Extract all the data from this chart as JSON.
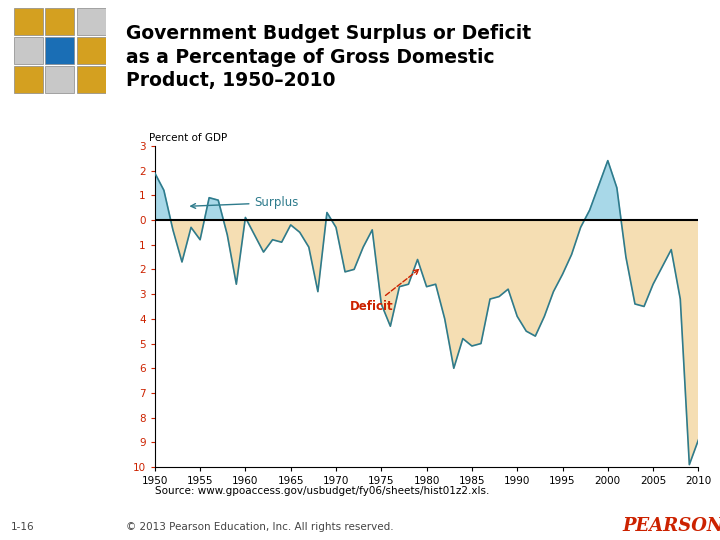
{
  "title_line1": "Government Budget Surplus or Deficit",
  "title_line2": "as a Percentage of Gross Domestic",
  "title_line3": "Product, 1950–2010",
  "ylabel": "Percent of GDP",
  "source": "Source: www.gpoaccess.gov/usbudget/fy06/sheets/hist01z2.xls.",
  "footer": "1-16",
  "copyright": "© 2013 Pearson Education, Inc. All rights reserved.",
  "years": [
    1950,
    1951,
    1952,
    1953,
    1954,
    1955,
    1956,
    1957,
    1958,
    1959,
    1960,
    1961,
    1962,
    1963,
    1964,
    1965,
    1966,
    1967,
    1968,
    1969,
    1970,
    1971,
    1972,
    1973,
    1974,
    1975,
    1976,
    1977,
    1978,
    1979,
    1980,
    1981,
    1982,
    1983,
    1984,
    1985,
    1986,
    1987,
    1988,
    1989,
    1990,
    1991,
    1992,
    1993,
    1994,
    1995,
    1996,
    1997,
    1998,
    1999,
    2000,
    2001,
    2002,
    2003,
    2004,
    2005,
    2006,
    2007,
    2008,
    2009,
    2010
  ],
  "values": [
    1.9,
    1.2,
    -0.4,
    -1.7,
    -0.3,
    -0.8,
    0.9,
    0.8,
    -0.6,
    -2.6,
    0.1,
    -0.6,
    -1.3,
    -0.8,
    -0.9,
    -0.2,
    -0.5,
    -1.1,
    -2.9,
    0.3,
    -0.3,
    -2.1,
    -2.0,
    -1.1,
    -0.4,
    -3.4,
    -4.3,
    -2.7,
    -2.6,
    -1.6,
    -2.7,
    -2.6,
    -4.0,
    -6.0,
    -4.8,
    -5.1,
    -5.0,
    -3.2,
    -3.1,
    -2.8,
    -3.9,
    -4.5,
    -4.7,
    -3.9,
    -2.9,
    -2.2,
    -1.4,
    -0.3,
    0.4,
    1.4,
    2.4,
    1.3,
    -1.5,
    -3.4,
    -3.5,
    -2.6,
    -1.9,
    -1.2,
    -3.2,
    -9.9,
    -8.9
  ],
  "line_color": "#2e7b8c",
  "surplus_fill_color": "#a8d8e8",
  "deficit_fill_color": "#f5deb3",
  "surplus_label": "Surplus",
  "deficit_label": "Deficit",
  "surplus_label_color": "#2e7b8c",
  "deficit_label_color": "#cc2200",
  "background_color": "#ffffff",
  "ytick_labels": [
    "3",
    "2",
    "1",
    "0",
    "1",
    "2",
    "3",
    "4",
    "5",
    "6",
    "7",
    "8",
    "9",
    "10"
  ],
  "ytick_values": [
    3,
    2,
    1,
    0,
    -1,
    -2,
    -3,
    -4,
    -5,
    -6,
    -7,
    -8,
    -9,
    -10
  ],
  "xtick_years": [
    1950,
    1955,
    1960,
    1965,
    1970,
    1975,
    1980,
    1985,
    1990,
    1995,
    2000,
    2005,
    2010
  ],
  "cube_colors": [
    [
      "#d4a020",
      "#d4a020",
      "#c8c8c8"
    ],
    [
      "#c8c8c8",
      "#1a6eb5",
      "#d4a020"
    ],
    [
      "#d4a020",
      "#c8c8c8",
      "#d4a020"
    ]
  ]
}
